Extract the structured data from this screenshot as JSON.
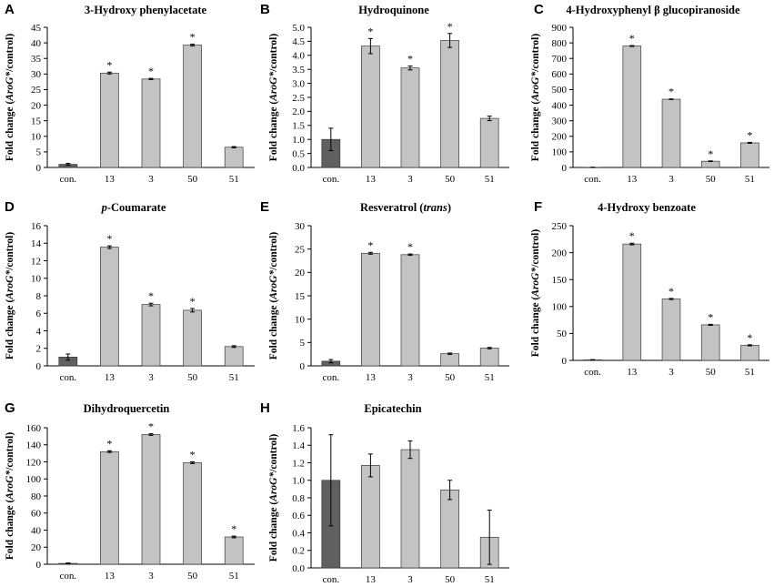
{
  "colors": {
    "control_bar": "#606060",
    "bar": "#c3c3c3",
    "axis": "#000000"
  },
  "chart_data": [
    {
      "panel_label": "A",
      "type": "bar",
      "title": "3-Hydroxy phenylacetate",
      "ylabel": "Fold change (AroG*/control)",
      "categories": [
        "con.",
        "13",
        "3",
        "50",
        "51"
      ],
      "values": [
        1,
        30.3,
        28.4,
        39.3,
        6.5
      ],
      "errors": [
        0.3,
        0.3,
        0.2,
        0.3,
        0.2
      ],
      "significant": [
        "",
        "*",
        "*",
        "*",
        ""
      ],
      "ylim": [
        0,
        45
      ],
      "ytick_step": 5,
      "grid": false
    },
    {
      "panel_label": "B",
      "type": "bar",
      "title": "Hydroquinone",
      "ylabel": "Fold change (AroG*/control)",
      "categories": [
        "con.",
        "13",
        "3",
        "50",
        "51"
      ],
      "values": [
        1.0,
        4.33,
        3.55,
        4.53,
        1.75
      ],
      "errors": [
        0.4,
        0.27,
        0.07,
        0.25,
        0.08
      ],
      "significant": [
        "",
        "*",
        "*",
        "*",
        ""
      ],
      "ylim": [
        0,
        5
      ],
      "ytick_step": 0.5,
      "grid": false
    },
    {
      "panel_label": "C",
      "type": "bar",
      "title": "4-Hydroxyphenyl β glucopiranoside",
      "ylabel": "Fold change (AroG*/control)",
      "categories": [
        "con.",
        "13",
        "3",
        "50",
        "51"
      ],
      "values": [
        1,
        780,
        438,
        40,
        158
      ],
      "errors": [
        0.5,
        3,
        2,
        2,
        3
      ],
      "significant": [
        "",
        "*",
        "*",
        "*",
        "*"
      ],
      "ylim": [
        0,
        900
      ],
      "ytick_step": 100,
      "grid": false
    },
    {
      "panel_label": "D",
      "type": "bar",
      "title": "p-Coumarate",
      "title_italic": "p",
      "title_rest": "-Coumarate",
      "ylabel": "Fold change (AroG*/control)",
      "categories": [
        "con.",
        "13",
        "3",
        "50",
        "51"
      ],
      "values": [
        1.0,
        13.55,
        7.0,
        6.35,
        2.2
      ],
      "errors": [
        0.35,
        0.15,
        0.15,
        0.2,
        0.1
      ],
      "significant": [
        "",
        "*",
        "*",
        "*",
        ""
      ],
      "ylim": [
        0,
        16
      ],
      "ytick_step": 2,
      "grid": false
    },
    {
      "panel_label": "E",
      "type": "bar",
      "title": "Resveratrol (trans)",
      "title_plain": "Resveratrol (",
      "title_italic": "trans",
      "title_end": ")",
      "ylabel": "Fold change (AroG*/control)",
      "categories": [
        "con.",
        "13",
        "3",
        "50",
        "51"
      ],
      "values": [
        1.0,
        24.1,
        23.8,
        2.6,
        3.8
      ],
      "errors": [
        0.35,
        0.2,
        0.15,
        0.15,
        0.15
      ],
      "significant": [
        "",
        "*",
        "*",
        "",
        ""
      ],
      "ylim": [
        0,
        30
      ],
      "ytick_step": 5,
      "grid": false
    },
    {
      "panel_label": "F",
      "type": "bar",
      "title": "4-Hydroxy benzoate",
      "ylabel": "Fold change (AroG*/control)",
      "categories": [
        "con.",
        "13",
        "3",
        "50",
        "51"
      ],
      "values": [
        1,
        216,
        114,
        66,
        28
      ],
      "errors": [
        0.5,
        1.5,
        1,
        1,
        1
      ],
      "significant": [
        "",
        "*",
        "*",
        "*",
        "*"
      ],
      "ylim": [
        0,
        250
      ],
      "ytick_step": 50,
      "grid": false
    },
    {
      "panel_label": "G",
      "type": "bar",
      "title": "Dihydroquercetin",
      "ylabel": "Fold change (AroG*/control)",
      "categories": [
        "con.",
        "13",
        "3",
        "50",
        "51"
      ],
      "values": [
        1,
        132,
        152,
        119,
        32
      ],
      "errors": [
        0.5,
        1,
        1,
        1,
        1
      ],
      "significant": [
        "",
        "*",
        "*",
        "*",
        "*"
      ],
      "ylim": [
        0,
        160
      ],
      "ytick_step": 20,
      "grid": false
    },
    {
      "panel_label": "H",
      "type": "bar",
      "title": "Epicatechin",
      "ylabel": "Fold change (AroG*/control)",
      "categories": [
        "con.",
        "13",
        "3",
        "50",
        "51"
      ],
      "values": [
        1.0,
        1.17,
        1.35,
        0.89,
        0.35
      ],
      "errors": [
        0.52,
        0.13,
        0.1,
        0.11,
        0.31
      ],
      "significant": [
        "",
        "",
        "",
        "",
        ""
      ],
      "ylim": [
        0,
        1.6
      ],
      "ytick_step": 0.2,
      "grid": false
    }
  ]
}
